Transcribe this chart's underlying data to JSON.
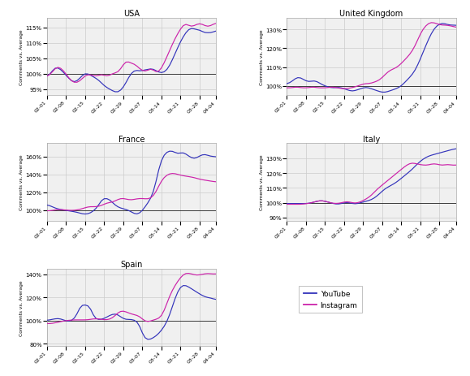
{
  "x_labels": [
    "02-01",
    "02-08",
    "02-15",
    "02-22",
    "02-29",
    "03-07",
    "03-14",
    "03-21",
    "03-28",
    "04-04"
  ],
  "panels": [
    {
      "title": "USA",
      "ylim": [
        93,
        118
      ],
      "yticks": [
        95,
        100,
        105,
        110,
        115
      ],
      "youtube": [
        99.0,
        99.5,
        101.0,
        102.5,
        102.0,
        101.5,
        100.5,
        99.5,
        98.5,
        97.5,
        97.0,
        97.5,
        98.5,
        99.5,
        100.5,
        100.0,
        99.5,
        99.0,
        98.5,
        98.0,
        97.0,
        96.0,
        95.5,
        95.0,
        94.5,
        94.0,
        93.8,
        94.5,
        95.5,
        97.0,
        99.0,
        100.5,
        101.0,
        101.5,
        100.5,
        101.0,
        101.5,
        101.0,
        102.0,
        101.5,
        101.0,
        100.5,
        100.0,
        100.5,
        101.0,
        102.5,
        104.5,
        106.5,
        108.5,
        110.5,
        112.0,
        113.5,
        114.5,
        115.0,
        114.5,
        114.0,
        114.5,
        113.5,
        113.0,
        113.5,
        113.0,
        113.5,
        114.0
      ],
      "instagram": [
        99.0,
        99.5,
        100.5,
        102.0,
        102.5,
        102.0,
        101.0,
        100.0,
        98.5,
        97.5,
        97.0,
        97.0,
        97.5,
        98.5,
        99.5,
        100.0,
        99.5,
        99.5,
        99.0,
        99.5,
        100.0,
        99.5,
        99.0,
        99.5,
        100.0,
        100.5,
        100.0,
        101.5,
        103.0,
        104.5,
        104.0,
        103.0,
        103.5,
        102.5,
        101.5,
        101.0,
        100.5,
        101.0,
        102.0,
        101.5,
        100.0,
        100.5,
        101.5,
        103.5,
        105.5,
        107.5,
        109.5,
        111.5,
        113.0,
        114.5,
        116.0,
        116.5,
        115.5,
        115.0,
        115.5,
        116.0,
        116.5,
        116.0,
        115.5,
        115.0,
        115.5,
        116.0,
        116.5
      ]
    },
    {
      "title": "United Kingdom",
      "ylim": [
        95,
        136
      ],
      "yticks": [
        100,
        110,
        120,
        130
      ],
      "youtube": [
        101.0,
        101.5,
        102.5,
        104.0,
        105.0,
        104.5,
        103.5,
        102.5,
        102.0,
        102.5,
        103.0,
        102.5,
        101.5,
        100.5,
        100.0,
        99.5,
        99.0,
        99.0,
        99.0,
        99.5,
        99.0,
        98.5,
        98.0,
        97.5,
        97.0,
        97.5,
        98.0,
        98.5,
        99.0,
        99.5,
        99.0,
        98.5,
        98.0,
        97.5,
        97.0,
        96.5,
        96.5,
        97.0,
        97.5,
        98.0,
        98.5,
        99.0,
        100.0,
        101.5,
        103.0,
        104.5,
        106.0,
        108.0,
        111.0,
        114.5,
        118.0,
        121.5,
        125.0,
        128.0,
        130.5,
        132.0,
        133.0,
        133.5,
        133.0,
        132.5,
        132.0,
        132.5,
        132.0
      ],
      "instagram": [
        99.0,
        99.0,
        99.0,
        99.5,
        99.5,
        99.0,
        99.0,
        99.0,
        99.0,
        99.5,
        99.5,
        99.0,
        99.0,
        99.0,
        99.0,
        99.0,
        99.5,
        99.5,
        99.0,
        99.0,
        98.5,
        98.5,
        98.5,
        99.0,
        99.0,
        99.5,
        100.0,
        100.5,
        101.0,
        101.5,
        101.0,
        101.5,
        102.0,
        102.5,
        103.0,
        104.5,
        106.0,
        107.5,
        108.5,
        109.0,
        109.5,
        110.5,
        112.0,
        113.5,
        115.0,
        116.5,
        118.5,
        121.0,
        124.5,
        128.0,
        130.5,
        132.0,
        133.5,
        134.0,
        133.5,
        133.0,
        132.5,
        132.0,
        132.5,
        132.0,
        132.0,
        131.5,
        131.0
      ]
    },
    {
      "title": "France",
      "ylim": [
        88,
        175
      ],
      "yticks": [
        100,
        120,
        140,
        160
      ],
      "youtube": [
        106.0,
        105.0,
        103.5,
        102.0,
        101.0,
        100.5,
        100.0,
        99.5,
        99.0,
        98.5,
        98.0,
        97.5,
        96.5,
        95.5,
        95.0,
        95.5,
        96.5,
        98.5,
        101.5,
        104.5,
        113.0,
        113.5,
        113.0,
        112.5,
        108.0,
        105.5,
        103.0,
        102.0,
        101.5,
        100.5,
        99.5,
        98.0,
        95.5,
        94.5,
        96.0,
        99.0,
        103.5,
        108.0,
        112.0,
        118.5,
        130.0,
        148.0,
        157.5,
        163.0,
        165.5,
        167.0,
        166.5,
        165.0,
        162.0,
        164.5,
        165.5,
        163.0,
        160.5,
        158.5,
        157.0,
        158.5,
        161.0,
        162.5,
        163.0,
        161.5,
        160.0,
        160.5,
        159.5
      ],
      "instagram": [
        99.0,
        99.0,
        99.5,
        100.0,
        100.5,
        100.5,
        100.0,
        100.0,
        99.5,
        99.5,
        99.5,
        100.0,
        100.5,
        101.5,
        102.5,
        103.5,
        104.0,
        103.5,
        103.5,
        104.0,
        105.0,
        106.5,
        108.0,
        108.5,
        108.5,
        110.0,
        112.0,
        113.0,
        113.5,
        112.0,
        111.5,
        111.0,
        112.0,
        112.5,
        113.0,
        113.0,
        112.5,
        112.0,
        113.0,
        115.0,
        120.0,
        127.0,
        133.5,
        137.0,
        139.5,
        141.0,
        141.5,
        141.0,
        140.0,
        139.0,
        138.5,
        138.0,
        137.5,
        137.0,
        136.5,
        135.5,
        134.5,
        134.0,
        133.5,
        133.0,
        132.5,
        132.0,
        131.5
      ]
    },
    {
      "title": "Italy",
      "ylim": [
        88,
        140
      ],
      "yticks": [
        90,
        100,
        110,
        120,
        130
      ],
      "youtube": [
        99.5,
        99.5,
        99.5,
        99.5,
        99.5,
        99.5,
        99.5,
        99.5,
        99.5,
        100.0,
        100.5,
        101.0,
        101.5,
        101.5,
        101.0,
        100.5,
        100.0,
        99.5,
        99.0,
        99.0,
        99.5,
        100.0,
        100.5,
        100.0,
        99.5,
        99.0,
        99.5,
        100.0,
        100.5,
        101.0,
        101.5,
        102.0,
        103.0,
        104.5,
        106.0,
        108.0,
        109.5,
        110.5,
        111.5,
        112.5,
        113.5,
        115.0,
        116.5,
        118.0,
        119.5,
        121.0,
        122.5,
        124.5,
        126.5,
        128.0,
        129.5,
        130.5,
        131.5,
        132.0,
        132.5,
        133.0,
        133.5,
        134.0,
        134.5,
        135.0,
        135.5,
        136.0,
        136.5
      ],
      "instagram": [
        99.0,
        99.0,
        99.0,
        99.0,
        99.0,
        99.0,
        99.0,
        99.5,
        99.5,
        100.0,
        100.5,
        101.0,
        101.5,
        101.5,
        101.0,
        100.5,
        100.0,
        99.5,
        99.5,
        99.5,
        100.0,
        100.5,
        101.0,
        100.5,
        100.0,
        99.5,
        100.0,
        100.5,
        101.5,
        102.5,
        103.5,
        105.0,
        107.0,
        109.0,
        110.5,
        112.0,
        113.5,
        115.0,
        116.5,
        118.0,
        119.5,
        121.0,
        122.5,
        124.0,
        125.5,
        126.5,
        127.0,
        126.5,
        126.0,
        125.5,
        125.5,
        125.0,
        125.5,
        126.0,
        126.5,
        126.0,
        125.5,
        125.0,
        125.5,
        126.0,
        125.5,
        125.0,
        125.5
      ]
    },
    {
      "title": "Spain",
      "ylim": [
        78,
        145
      ],
      "yticks": [
        80,
        100,
        120,
        140
      ],
      "youtube": [
        100.0,
        100.5,
        101.0,
        101.5,
        102.0,
        101.5,
        100.5,
        99.5,
        99.0,
        99.5,
        101.5,
        103.5,
        113.5,
        114.0,
        113.5,
        113.0,
        113.5,
        101.5,
        101.0,
        100.5,
        101.0,
        101.5,
        103.0,
        104.5,
        105.5,
        106.0,
        105.5,
        103.0,
        101.5,
        100.5,
        101.0,
        101.0,
        100.5,
        99.5,
        97.5,
        87.0,
        83.5,
        83.0,
        83.5,
        85.0,
        86.5,
        88.5,
        91.5,
        94.5,
        98.5,
        104.5,
        112.0,
        119.5,
        126.0,
        129.5,
        131.5,
        130.5,
        129.0,
        127.5,
        126.0,
        124.5,
        123.0,
        121.5,
        120.5,
        119.5,
        120.0,
        118.5,
        118.0
      ],
      "instagram": [
        97.5,
        97.0,
        97.5,
        98.0,
        98.5,
        99.0,
        99.5,
        100.0,
        100.0,
        100.5,
        100.5,
        100.5,
        100.5,
        100.5,
        100.5,
        100.5,
        101.0,
        101.5,
        101.5,
        101.5,
        101.0,
        100.5,
        100.5,
        101.0,
        102.0,
        104.0,
        107.0,
        108.5,
        108.5,
        107.5,
        106.5,
        105.5,
        105.0,
        104.5,
        104.0,
        101.0,
        99.0,
        98.5,
        99.5,
        100.5,
        101.0,
        101.5,
        103.0,
        108.0,
        115.0,
        121.5,
        126.5,
        130.5,
        134.0,
        137.5,
        140.0,
        141.5,
        141.0,
        140.5,
        139.5,
        139.0,
        139.5,
        140.0,
        140.5,
        141.0,
        140.5,
        140.0,
        140.5
      ]
    }
  ],
  "youtube_color": "#3333bb",
  "instagram_color": "#cc22aa",
  "background_color": "#f0f0f0",
  "grid_color": "#cccccc"
}
